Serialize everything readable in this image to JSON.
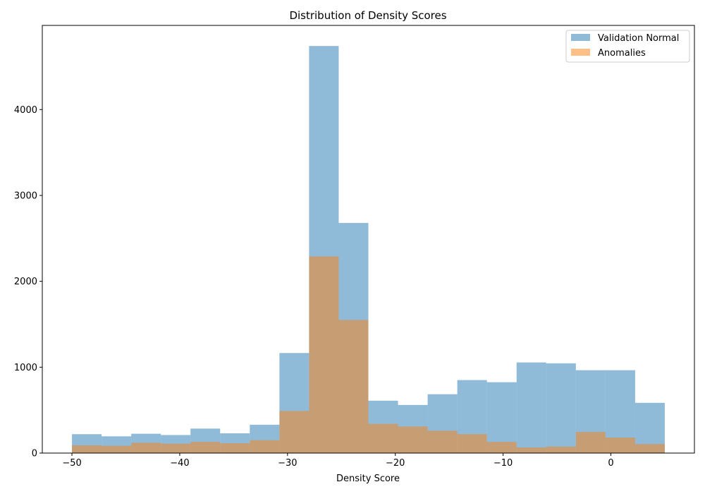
{
  "chart_data": {
    "type": "bar",
    "title": "Distribution of Density Scores",
    "xlabel": "Density Score",
    "ylabel": "",
    "bin_edges": [
      -50,
      -47.25,
      -44.5,
      -41.75,
      -39,
      -36.25,
      -33.5,
      -30.75,
      -28,
      -25.25,
      -22.5,
      -19.75,
      -17,
      -14.25,
      -11.5,
      -8.75,
      -6,
      -3.25,
      -0.5,
      2.25,
      5
    ],
    "xlim": [
      -52.75,
      7.75
    ],
    "ylim": [
      0,
      4980
    ],
    "xticks": [
      -50,
      -40,
      -30,
      -20,
      -10,
      0
    ],
    "yticks": [
      0,
      1000,
      2000,
      3000,
      4000
    ],
    "series": [
      {
        "name": "Validation Normal",
        "color": "#1f77b4",
        "alpha": 0.5,
        "values": [
          220,
          195,
          225,
          210,
          285,
          230,
          330,
          1165,
          4740,
          2680,
          610,
          560,
          685,
          850,
          825,
          1055,
          1045,
          965,
          965,
          585
        ]
      },
      {
        "name": "Anomalies",
        "color": "#ff7f0e",
        "alpha": 0.5,
        "values": [
          90,
          85,
          120,
          110,
          130,
          115,
          150,
          490,
          2290,
          1550,
          340,
          310,
          260,
          220,
          130,
          65,
          75,
          245,
          180,
          105
        ]
      }
    ],
    "legend_position": "top-right",
    "grid": false
  }
}
